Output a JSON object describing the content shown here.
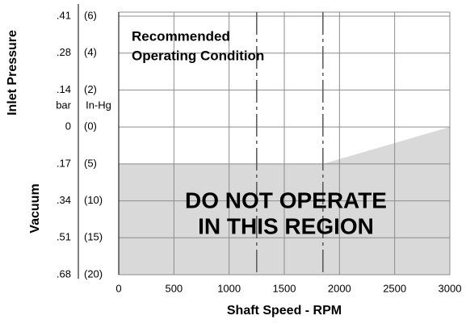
{
  "chart_data": {
    "type": "area",
    "y_title": "Inlet Pressure",
    "y_title_lower": "Vacuum",
    "x_title": "Shaft Speed - RPM",
    "y_unit_label": "In-Hg",
    "y2_unit_label": "bar",
    "annotation_top": [
      "Recommended",
      "Operating Condition"
    ],
    "annotation_region": [
      "DO NOT OPERATE",
      "IN THIS REGION"
    ],
    "x": [
      0,
      1850,
      3000
    ],
    "values": [
      -5,
      -5,
      0
    ],
    "color": "#d9d9d9",
    "vlines": [
      1250,
      1850
    ],
    "xlim": [
      0,
      3000
    ],
    "xticks": [
      0,
      500,
      1000,
      1500,
      2000,
      2500,
      3000
    ],
    "yticks": [
      {
        "value": 6,
        "label": "(6)"
      },
      {
        "value": 4,
        "label": "(4)"
      },
      {
        "value": 2,
        "label": "(2)"
      },
      {
        "value": 0,
        "label": "(0)"
      },
      {
        "value": -5,
        "label": "(5)"
      },
      {
        "value": -10,
        "label": "(10)"
      },
      {
        "value": -15,
        "label": "(15)"
      },
      {
        "value": -20,
        "label": "(20)"
      }
    ],
    "y2ticks": [
      {
        "value": 0.41,
        "label": ".41"
      },
      {
        "value": 0.28,
        "label": ".28"
      },
      {
        "value": 0.14,
        "label": ".14"
      },
      {
        "value": 0,
        "label": "0"
      },
      {
        "value": -0.17,
        "label": ".17"
      },
      {
        "value": -0.34,
        "label": ".34"
      },
      {
        "value": -0.51,
        "label": ".51"
      },
      {
        "value": -0.68,
        "label": ".68"
      }
    ],
    "grid": true
  }
}
